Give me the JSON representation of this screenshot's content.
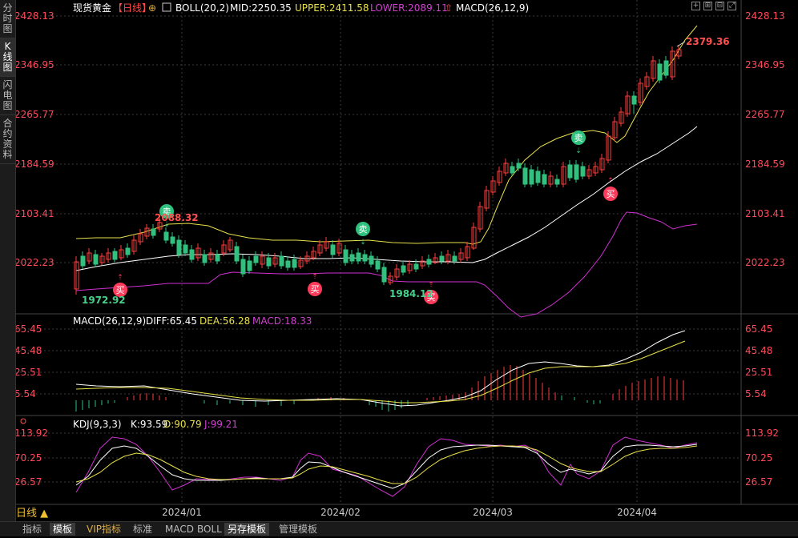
{
  "sidebar": {
    "tabs": [
      {
        "label": [
          "分",
          "时",
          "图"
        ],
        "active": false
      },
      {
        "label": [
          "K",
          "线",
          "图"
        ],
        "active": true
      },
      {
        "label": [
          "闪",
          "电",
          "图"
        ],
        "active": false
      },
      {
        "label": [
          "合",
          "约",
          "资",
          "料"
        ],
        "active": false
      }
    ]
  },
  "header": {
    "instrument": "现货黄金",
    "period_tag": "【日线】",
    "add_icon": "⊕",
    "boll_label": "BOLL(20,2)",
    "mid": "MID:2250.35",
    "upper": "UPPER:2411.58",
    "lower": "LOWER:2089.11",
    "macd_switch": "MACD(26,12,9)"
  },
  "price_axis": {
    "ticks": [
      "2428.13",
      "2346.95",
      "2265.77",
      "2184.59",
      "2103.41",
      "2022.23"
    ]
  },
  "annotations": {
    "high": "2379.36",
    "low1": "1972.92",
    "low2": "1984.12",
    "mid_high": "2088.32",
    "sell": "卖",
    "buy": "买"
  },
  "macd_panel": {
    "title": "MACD(26,12,9)",
    "diff": "DIFF:65.45",
    "dea": "DEA:56.28",
    "macd": "MACD:18.33",
    "ticks": [
      "65.45",
      "45.48",
      "25.51",
      "5.54"
    ]
  },
  "kdj_panel": {
    "title": "KDJ(9,3,3)",
    "k": "K:93.59",
    "d": "D:90.79",
    "j": "J:99.21",
    "ticks": [
      "113.92",
      "70.25",
      "26.57"
    ]
  },
  "x_axis": {
    "labels": [
      "2024/01",
      "2024/02",
      "2024/03",
      "2024/04"
    ]
  },
  "period_selector": "日线 ▲",
  "bottom_bar": {
    "items": [
      "指标",
      "模板",
      "VIP指标",
      "标准",
      "MACD",
      "BOLL",
      "另存模板",
      "管理模板"
    ]
  },
  "colors": {
    "up": "#ff3b3b",
    "down": "#2ec27e",
    "mid": "#ffffff",
    "upper": "#e8e04a",
    "lower": "#d030d0"
  }
}
